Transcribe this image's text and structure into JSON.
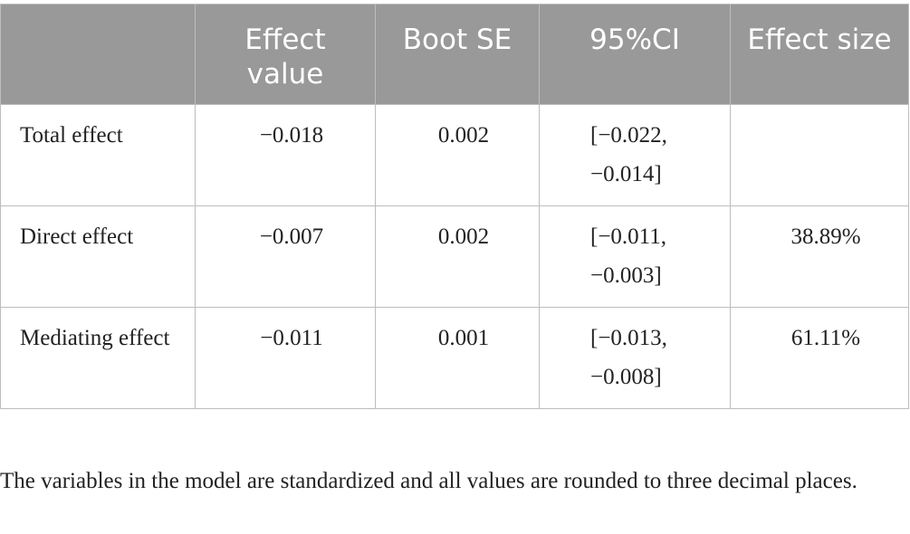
{
  "table": {
    "headers": [
      "",
      "Effect value",
      "Boot SE",
      "95%CI",
      "Effect size"
    ],
    "rows": [
      {
        "label": "Total effect",
        "effect_value": "−0.018",
        "boot_se": "0.002",
        "ci": "[−0.022, −0.014]",
        "effect_size": ""
      },
      {
        "label": "Direct effect",
        "effect_value": "−0.007",
        "boot_se": "0.002",
        "ci": "[−0.011, −0.003]",
        "effect_size": "38.89%"
      },
      {
        "label": "Mediating effect",
        "effect_value": "−0.011",
        "boot_se": "0.001",
        "ci": "[−0.013, −0.008]",
        "effect_size": "61.11%"
      }
    ]
  },
  "footnote": "The variables in the model are standardized and all values are rounded to three decimal places."
}
